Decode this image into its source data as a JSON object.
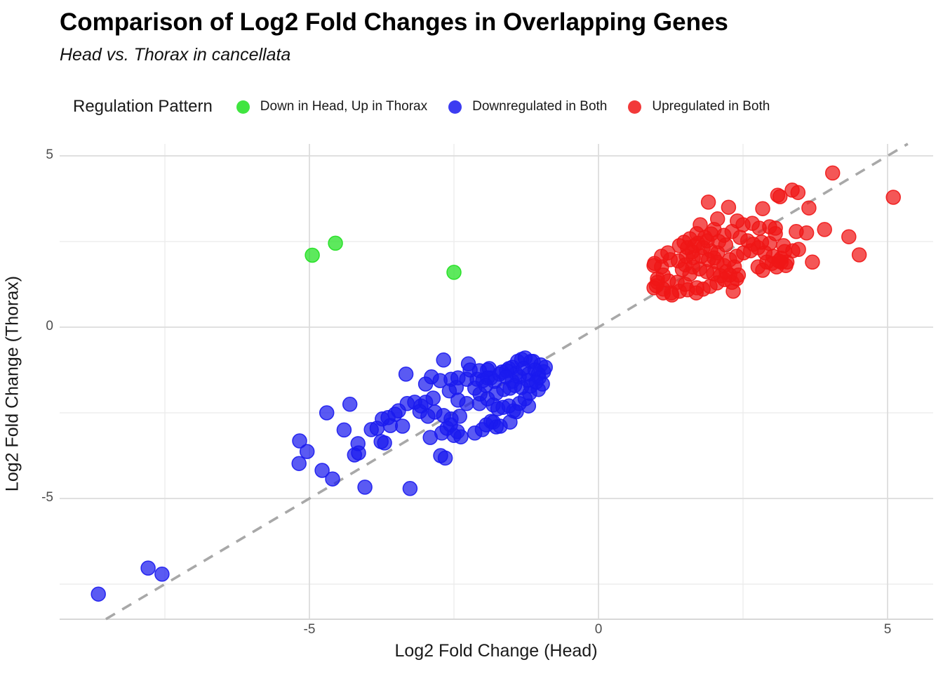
{
  "header": {
    "title": "Comparison of Log2 Fold Changes in Overlapping Genes",
    "subtitle": "Head vs. Thorax in cancellata"
  },
  "legend": {
    "title": "Regulation Pattern",
    "position": "top"
  },
  "chart_data": {
    "type": "scatter",
    "title": "Comparison of Log2 Fold Changes in Overlapping Genes",
    "subtitle": "Head vs. Thorax in cancellata",
    "xlabel": "Log2 Fold Change (Head)",
    "ylabel": "Log2 Fold Change (Thorax)",
    "xlim": [
      -9.3,
      5.8
    ],
    "ylim": [
      -8.5,
      5.3
    ],
    "x_ticks": [
      -5,
      0,
      5
    ],
    "y_ticks": [
      5,
      0,
      -5
    ],
    "x_minor_ticks": [
      -7.5,
      -2.5,
      2.5
    ],
    "y_minor_ticks": [
      2.5,
      -2.5,
      -7.5
    ],
    "grid": true,
    "background": "#ffffff",
    "grid_major_color": "#dcdcdc",
    "grid_minor_color": "#ededed",
    "axis_line_color": "#d8d8d8",
    "point_opacity": 0.72,
    "point_radius_px": 10,
    "reference_line": {
      "type": "identity y=x",
      "style": "dashed",
      "color": "#a8a8a8"
    },
    "series": [
      {
        "name": "Down in Head, Up in Thorax",
        "color": "#1ee01e",
        "points": [
          [
            -4.95,
            2.1
          ],
          [
            -4.55,
            2.45
          ],
          [
            -2.5,
            1.6
          ]
        ]
      },
      {
        "name": "Downregulated in Both",
        "color": "#1a1aee",
        "points": [
          [
            -8.65,
            -7.79
          ],
          [
            -7.79,
            -7.03
          ],
          [
            -7.55,
            -7.21
          ],
          [
            -5.17,
            -3.32
          ],
          [
            -5.04,
            -3.63
          ],
          [
            -5.18,
            -3.98
          ],
          [
            -4.78,
            -4.18
          ],
          [
            -4.6,
            -4.43
          ],
          [
            -4.7,
            -2.5
          ],
          [
            -4.3,
            -2.25
          ],
          [
            -4.4,
            -3.0
          ],
          [
            -4.16,
            -3.4
          ],
          [
            -4.22,
            -3.73
          ],
          [
            -4.15,
            -3.67
          ],
          [
            -4.04,
            -4.67
          ],
          [
            -3.93,
            -2.99
          ],
          [
            -3.83,
            -2.95
          ],
          [
            -3.74,
            -2.68
          ],
          [
            -3.6,
            -2.87
          ],
          [
            -3.76,
            -3.34
          ],
          [
            -3.7,
            -3.38
          ],
          [
            -3.52,
            -2.54
          ],
          [
            -3.39,
            -2.89
          ],
          [
            -3.31,
            -2.23
          ],
          [
            -3.18,
            -2.19
          ],
          [
            -3.09,
            -2.46
          ],
          [
            -3.33,
            -1.37
          ],
          [
            -3.26,
            -4.71
          ],
          [
            -3.46,
            -2.44
          ],
          [
            -3.64,
            -2.64
          ],
          [
            -3.07,
            -2.3
          ],
          [
            -2.99,
            -1.66
          ],
          [
            -2.89,
            -1.45
          ],
          [
            -2.74,
            -1.56
          ],
          [
            -2.68,
            -0.96
          ],
          [
            -2.99,
            -2.19
          ],
          [
            -2.86,
            -2.07
          ],
          [
            -2.83,
            -2.48
          ],
          [
            -2.95,
            -2.6
          ],
          [
            -2.68,
            -2.58
          ],
          [
            -2.71,
            -3.09
          ],
          [
            -2.91,
            -3.22
          ],
          [
            -2.62,
            -2.95
          ],
          [
            -2.55,
            -2.68
          ],
          [
            -2.5,
            -3.16
          ],
          [
            -2.56,
            -2.85
          ],
          [
            -2.73,
            -3.75
          ],
          [
            -2.65,
            -3.82
          ],
          [
            -2.55,
            -1.52
          ],
          [
            -2.43,
            -1.48
          ],
          [
            -2.46,
            -1.76
          ],
          [
            -2.58,
            -1.86
          ],
          [
            -2.43,
            -2.13
          ],
          [
            -2.28,
            -2.23
          ],
          [
            -2.4,
            -2.6
          ],
          [
            -2.38,
            -3.2
          ],
          [
            -2.44,
            -3.05
          ],
          [
            -2.28,
            -1.52
          ],
          [
            -2.25,
            -1.07
          ],
          [
            -2.22,
            -1.25
          ],
          [
            -2.14,
            -1.78
          ],
          [
            -2.1,
            -1.52
          ],
          [
            -2.06,
            -1.27
          ],
          [
            -2.06,
            -2.23
          ],
          [
            -2.14,
            -3.09
          ],
          [
            -2.01,
            -2.99
          ],
          [
            -1.92,
            -1.25
          ],
          [
            -2.0,
            -1.56
          ],
          [
            -1.86,
            -1.48
          ],
          [
            -1.92,
            -2.09
          ],
          [
            -1.82,
            -2.27
          ],
          [
            -1.94,
            -2.85
          ],
          [
            -1.86,
            -2.75
          ],
          [
            -1.82,
            -2.77
          ],
          [
            -1.77,
            -2.91
          ],
          [
            -1.67,
            -1.31
          ],
          [
            -1.55,
            -1.21
          ],
          [
            -1.64,
            -1.82
          ],
          [
            -1.77,
            -1.93
          ],
          [
            -1.65,
            -2.34
          ],
          [
            -1.7,
            -2.89
          ],
          [
            -1.53,
            -2.77
          ],
          [
            -1.89,
            -1.21
          ],
          [
            -1.92,
            -1.48
          ],
          [
            -1.8,
            -1.58
          ],
          [
            -1.74,
            -2.38
          ],
          [
            -2.05,
            -1.95
          ],
          [
            -1.95,
            -1.7
          ],
          [
            -1.47,
            -2.44
          ],
          [
            -1.42,
            -2.47
          ],
          [
            -1.49,
            -1.58
          ],
          [
            -1.43,
            -1.35
          ],
          [
            -1.49,
            -1.17
          ],
          [
            -1.59,
            -1.27
          ],
          [
            -1.71,
            -1.37
          ],
          [
            -1.53,
            -1.78
          ],
          [
            -1.6,
            -1.45
          ],
          [
            -1.45,
            -1.7
          ],
          [
            -1.4,
            -1.0
          ],
          [
            -1.33,
            -0.94
          ],
          [
            -1.27,
            -0.9
          ],
          [
            -1.17,
            -1.0
          ],
          [
            -1.0,
            -1.1
          ],
          [
            -0.95,
            -1.3
          ],
          [
            -1.03,
            -1.48
          ],
          [
            -0.97,
            -1.66
          ],
          [
            -1.04,
            -1.82
          ],
          [
            -1.19,
            -1.93
          ],
          [
            -1.27,
            -2.09
          ],
          [
            -1.21,
            -2.3
          ],
          [
            -1.37,
            -1.45
          ],
          [
            -1.21,
            -1.37
          ],
          [
            -1.33,
            -1.76
          ],
          [
            -1.17,
            -1.72
          ],
          [
            -0.92,
            -1.17
          ],
          [
            -1.13,
            -1.0
          ],
          [
            -1.55,
            -2.3
          ],
          [
            -1.04,
            -1.37
          ],
          [
            -1.1,
            -1.25
          ],
          [
            -1.22,
            -1.55
          ],
          [
            -1.08,
            -1.6
          ],
          [
            -1.3,
            -1.2
          ],
          [
            -1.37,
            -2.23
          ]
        ]
      },
      {
        "name": "Upregulated in Both",
        "color": "#f01616",
        "points": [
          [
            1.9,
            3.65
          ],
          [
            2.25,
            3.5
          ],
          [
            3.1,
            3.85
          ],
          [
            2.84,
            3.46
          ],
          [
            2.06,
            3.16
          ],
          [
            1.76,
            2.99
          ],
          [
            2.0,
            2.85
          ],
          [
            2.4,
            3.1
          ],
          [
            2.5,
            2.99
          ],
          [
            2.66,
            3.03
          ],
          [
            2.78,
            2.89
          ],
          [
            2.96,
            2.93
          ],
          [
            3.06,
            2.73
          ],
          [
            3.2,
            2.38
          ],
          [
            2.96,
            2.44
          ],
          [
            2.82,
            2.48
          ],
          [
            2.31,
            2.79
          ],
          [
            2.17,
            2.68
          ],
          [
            1.84,
            2.62
          ],
          [
            1.7,
            2.73
          ],
          [
            1.58,
            2.58
          ],
          [
            1.48,
            2.48
          ],
          [
            1.4,
            2.38
          ],
          [
            1.54,
            2.32
          ],
          [
            1.66,
            2.38
          ],
          [
            1.81,
            2.32
          ],
          [
            1.94,
            2.23
          ],
          [
            2.06,
            2.17
          ],
          [
            1.78,
            2.07
          ],
          [
            1.64,
            2.03
          ],
          [
            1.52,
            2.07
          ],
          [
            1.9,
            1.97
          ],
          [
            2.05,
            1.9
          ],
          [
            2.17,
            1.8
          ],
          [
            2.27,
            1.97
          ],
          [
            2.39,
            2.07
          ],
          [
            2.51,
            2.17
          ],
          [
            2.63,
            2.23
          ],
          [
            2.76,
            2.32
          ],
          [
            2.88,
            2.17
          ],
          [
            3.02,
            2.07
          ],
          [
            3.16,
            2.01
          ],
          [
            3.08,
            1.76
          ],
          [
            2.91,
            1.9
          ],
          [
            1.2,
            2.17
          ],
          [
            1.09,
            2.07
          ],
          [
            0.97,
            1.86
          ],
          [
            1.09,
            1.76
          ],
          [
            1.24,
            1.97
          ],
          [
            1.38,
            1.93
          ],
          [
            1.5,
            1.82
          ],
          [
            1.63,
            1.76
          ],
          [
            1.75,
            1.7
          ],
          [
            1.87,
            1.62
          ],
          [
            1.99,
            1.56
          ],
          [
            2.11,
            1.5
          ],
          [
            2.27,
            1.52
          ],
          [
            2.39,
            1.41
          ],
          [
            1.12,
            1.52
          ],
          [
            1.02,
            1.41
          ],
          [
            1.21,
            1.35
          ],
          [
            1.36,
            1.31
          ],
          [
            1.5,
            1.25
          ],
          [
            1.0,
            1.21
          ],
          [
            1.12,
            1.11
          ],
          [
            1.26,
            1.0
          ],
          [
            1.4,
            1.05
          ],
          [
            1.54,
            1.09
          ],
          [
            1.7,
            1.15
          ],
          [
            2.31,
            1.31
          ],
          [
            2.76,
            1.76
          ],
          [
            0.96,
            1.8
          ],
          [
            1.02,
            1.31
          ],
          [
            0.96,
            1.15
          ],
          [
            1.12,
            1.0
          ],
          [
            1.27,
            0.94
          ],
          [
            1.69,
            1.0
          ],
          [
            1.81,
            1.11
          ],
          [
            1.93,
            1.19
          ],
          [
            2.05,
            1.29
          ],
          [
            2.18,
            1.39
          ],
          [
            2.33,
            1.05
          ],
          [
            2.42,
            1.52
          ],
          [
            2.35,
            1.76
          ],
          [
            2.84,
            1.66
          ],
          [
            3.0,
            1.86
          ],
          [
            3.16,
            1.9
          ],
          [
            3.24,
            1.8
          ],
          [
            3.7,
            1.9
          ],
          [
            2.21,
            1.62
          ],
          [
            4.05,
            4.5
          ],
          [
            3.14,
            3.81
          ],
          [
            3.35,
            4.0
          ],
          [
            3.45,
            3.93
          ],
          [
            3.64,
            3.48
          ],
          [
            5.1,
            3.79
          ],
          [
            3.06,
            2.89
          ],
          [
            3.42,
            2.79
          ],
          [
            3.6,
            2.75
          ],
          [
            3.91,
            2.85
          ],
          [
            4.33,
            2.64
          ],
          [
            3.22,
            2.21
          ],
          [
            3.36,
            2.23
          ],
          [
            3.46,
            2.27
          ],
          [
            3.12,
            1.93
          ],
          [
            3.26,
            1.9
          ],
          [
            4.51,
            2.11
          ],
          [
            1.62,
            2.2
          ],
          [
            1.72,
            2.45
          ],
          [
            1.88,
            2.52
          ],
          [
            2.08,
            2.5
          ],
          [
            2.2,
            2.4
          ],
          [
            1.95,
            2.72
          ],
          [
            2.45,
            2.62
          ],
          [
            2.58,
            2.52
          ],
          [
            2.68,
            2.42
          ],
          [
            1.45,
            1.68
          ],
          [
            1.58,
            1.55
          ],
          [
            2.0,
            2.02
          ]
        ]
      }
    ]
  }
}
